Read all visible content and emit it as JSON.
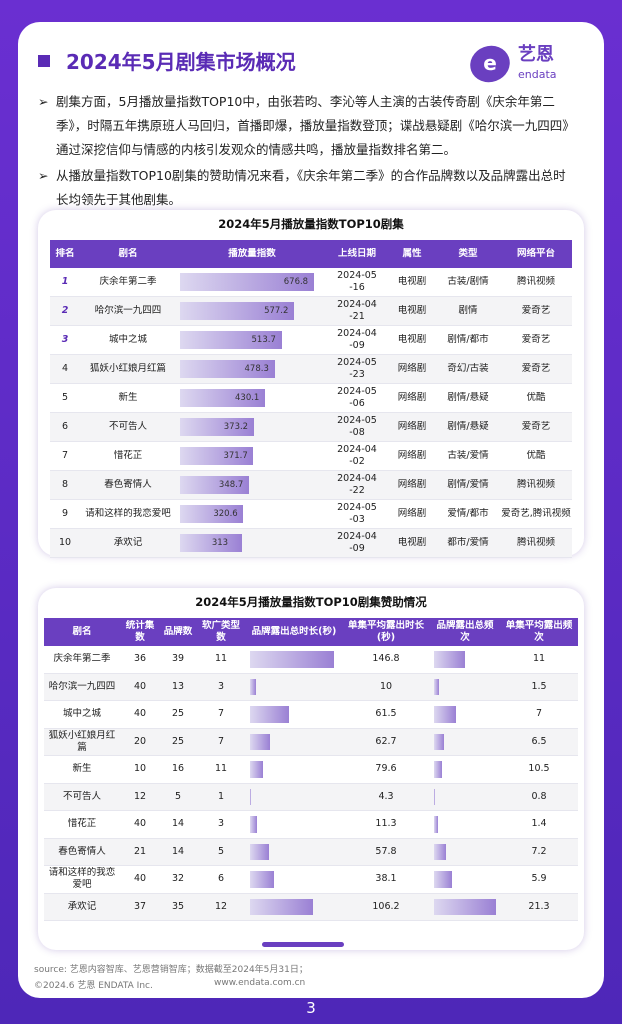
{
  "header": {
    "title": "2024年5月剧集市场概况",
    "logo_cn": "艺恩",
    "logo_en": "endata"
  },
  "bullets": [
    "剧集方面，5月播放量指数TOP10中，由张若昀、李沁等人主演的古装传奇剧《庆余年第二季》，时隔五年携原班人马回归，首播即爆，播放量指数登顶；谍战悬疑剧《哈尔滨一九四四》通过深挖信仰与情感的内核引发观众的情感共鸣，播放量指数排名第二。",
    "从播放量指数TOP10剧集的赞助情况来看，《庆余年第二季》的合作品牌数以及品牌露出总时长均领先于其他剧集。"
  ],
  "table1": {
    "title": "2024年5月播放量指数TOP10剧集",
    "columns": [
      "排名",
      "剧名",
      "播放量指数",
      "上线日期",
      "属性",
      "类型",
      "网络平台"
    ],
    "rows": [
      [
        1,
        "庆余年第二季",
        676.8,
        "2024-05-16",
        "电视剧",
        "古装/剧情",
        "腾讯视频"
      ],
      [
        2,
        "哈尔滨一九四四",
        577.2,
        "2024-04-21",
        "电视剧",
        "剧情",
        "爱奇艺"
      ],
      [
        3,
        "城中之城",
        513.7,
        "2024-04-09",
        "电视剧",
        "剧情/都市",
        "爱奇艺"
      ],
      [
        4,
        "狐妖小红娘月红篇",
        478.3,
        "2024-05-23",
        "网络剧",
        "奇幻/古装",
        "爱奇艺"
      ],
      [
        5,
        "新生",
        430.1,
        "2024-05-06",
        "网络剧",
        "剧情/悬疑",
        "优酷"
      ],
      [
        6,
        "不可告人",
        373.2,
        "2024-05-08",
        "网络剧",
        "剧情/悬疑",
        "爱奇艺"
      ],
      [
        7,
        "惜花芷",
        371.7,
        "2024-04-02",
        "网络剧",
        "古装/爱情",
        "优酷"
      ],
      [
        8,
        "春色寄情人",
        348.7,
        "2024-04-22",
        "网络剧",
        "剧情/爱情",
        "腾讯视频"
      ],
      [
        9,
        "请和这样的我恋爱吧",
        320.6,
        "2024-05-03",
        "网络剧",
        "爱情/都市",
        "爱奇艺,腾讯视频"
      ],
      [
        10,
        "承欢记",
        313.0,
        "2024-04-09",
        "电视剧",
        "都市/爱情",
        "腾讯视频"
      ]
    ]
  },
  "table2": {
    "title": "2024年5月播放量指数TOP10剧集赞助情况",
    "columns": [
      "剧名",
      "统计集数",
      "品牌数",
      "软广类型数",
      "品牌露出总时长(秒)",
      "单集平均露出时长(秒)",
      "品牌露出总频次",
      "单集平均露出频次"
    ],
    "rows": [
      [
        "庆余年第二季",
        36,
        39,
        11,
        5285,
        146.8,
        396,
        11.0
      ],
      [
        "哈尔滨一九四四",
        40,
        13,
        3,
        400,
        10.0,
        60,
        1.5
      ],
      [
        "城中之城",
        40,
        25,
        7,
        2460,
        61.5,
        280,
        7.0
      ],
      [
        "狐妖小红娘月红篇",
        20,
        25,
        7,
        1254,
        62.7,
        130,
        6.5
      ],
      [
        "新生",
        10,
        16,
        11,
        796,
        79.6,
        105,
        10.5
      ],
      [
        "不可告人",
        12,
        5,
        1,
        52,
        4.3,
        10,
        0.8
      ],
      [
        "惜花芷",
        40,
        14,
        3,
        452,
        11.3,
        56,
        1.4
      ],
      [
        "春色寄情人",
        21,
        14,
        5,
        1214,
        57.8,
        151,
        7.2
      ],
      [
        "请和这样的我恋爱吧",
        40,
        32,
        6,
        1524,
        38.1,
        236,
        5.9
      ],
      [
        "承欢记",
        37,
        35,
        12,
        3929,
        106.2,
        788,
        21.3
      ]
    ]
  },
  "footer": {
    "source": "source: 艺恩内容智库、艺恩营销智库；数据截至2024年5月31日；",
    "copyright": "©2024.6 艺恩 ENDATA Inc.",
    "website": "www.endata.com.cn",
    "page": "3"
  }
}
